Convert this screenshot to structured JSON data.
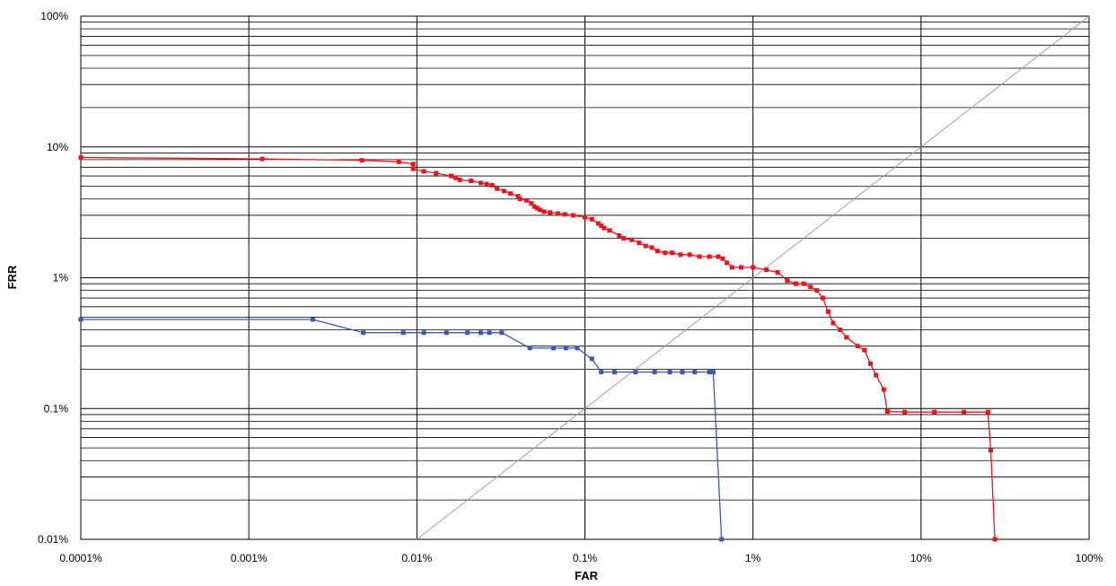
{
  "chart_data": {
    "type": "line",
    "title": "",
    "xlabel": "FAR",
    "ylabel": "FRR",
    "x_scale": "log",
    "y_scale": "log",
    "xlim": [
      0.0001,
      100
    ],
    "ylim": [
      0.01,
      100
    ],
    "x_ticks": [
      {
        "value": 0.0001,
        "label": "0.0001%"
      },
      {
        "value": 0.001,
        "label": "0.001%"
      },
      {
        "value": 0.01,
        "label": "0.01%"
      },
      {
        "value": 0.1,
        "label": "0.1%"
      },
      {
        "value": 1,
        "label": "1%"
      },
      {
        "value": 10,
        "label": "10%"
      },
      {
        "value": 100,
        "label": "100%"
      }
    ],
    "y_ticks": [
      {
        "value": 0.01,
        "label": "0.01%"
      },
      {
        "value": 0.1,
        "label": "0.1%"
      },
      {
        "value": 1,
        "label": "1%"
      },
      {
        "value": 10,
        "label": "10%"
      },
      {
        "value": 100,
        "label": "100%"
      }
    ],
    "grid": true,
    "legend": "none",
    "reference_line": {
      "x": [
        0.01,
        100
      ],
      "y": [
        0.01,
        100
      ],
      "color": "#a0a0a0"
    },
    "series": [
      {
        "color": "#e8141e",
        "x": [
          0.0001,
          0.0012,
          0.0047,
          0.0078,
          0.0095,
          0.0095,
          0.011,
          0.013,
          0.016,
          0.017,
          0.018,
          0.021,
          0.024,
          0.026,
          0.028,
          0.03,
          0.033,
          0.036,
          0.04,
          0.041,
          0.045,
          0.048,
          0.05,
          0.052,
          0.054,
          0.057,
          0.062,
          0.069,
          0.076,
          0.085,
          0.1,
          0.11,
          0.12,
          0.125,
          0.13,
          0.14,
          0.16,
          0.17,
          0.19,
          0.21,
          0.23,
          0.25,
          0.27,
          0.3,
          0.33,
          0.37,
          0.42,
          0.48,
          0.55,
          0.62,
          0.66,
          0.7,
          0.75,
          0.85,
          1.0,
          1.2,
          1.4,
          1.6,
          1.8,
          2.0,
          2.2,
          2.4,
          2.6,
          2.8,
          3.0,
          3.3,
          3.6,
          4.2,
          4.6,
          5.0,
          5.4,
          6.0,
          6.3,
          8,
          12,
          18,
          25,
          26,
          27.5
        ],
        "y": [
          8.3,
          8.1,
          7.9,
          7.7,
          7.4,
          6.8,
          6.5,
          6.3,
          6.0,
          5.8,
          5.6,
          5.5,
          5.3,
          5.2,
          5.1,
          4.8,
          4.6,
          4.4,
          4.2,
          4.0,
          3.9,
          3.7,
          3.5,
          3.4,
          3.3,
          3.2,
          3.15,
          3.1,
          3.05,
          3.0,
          2.9,
          2.8,
          2.6,
          2.5,
          2.4,
          2.3,
          2.1,
          2.0,
          1.95,
          1.85,
          1.75,
          1.7,
          1.6,
          1.55,
          1.55,
          1.5,
          1.5,
          1.45,
          1.45,
          1.45,
          1.4,
          1.3,
          1.2,
          1.2,
          1.2,
          1.15,
          1.1,
          0.95,
          0.9,
          0.9,
          0.85,
          0.8,
          0.7,
          0.55,
          0.45,
          0.4,
          0.35,
          0.3,
          0.28,
          0.22,
          0.18,
          0.14,
          0.095,
          0.094,
          0.094,
          0.094,
          0.094,
          0.048,
          0.01
        ]
      },
      {
        "color": "#3b59ad",
        "x": [
          0.0001,
          0.0024,
          0.0048,
          0.0083,
          0.011,
          0.015,
          0.02,
          0.024,
          0.027,
          0.032,
          0.047,
          0.065,
          0.077,
          0.09,
          0.11,
          0.125,
          0.15,
          0.2,
          0.26,
          0.32,
          0.38,
          0.45,
          0.55,
          0.58,
          0.65
        ],
        "y": [
          0.48,
          0.48,
          0.38,
          0.38,
          0.38,
          0.38,
          0.38,
          0.38,
          0.38,
          0.38,
          0.29,
          0.29,
          0.29,
          0.29,
          0.24,
          0.19,
          0.19,
          0.19,
          0.19,
          0.19,
          0.19,
          0.19,
          0.19,
          0.19,
          0.01
        ]
      }
    ]
  }
}
